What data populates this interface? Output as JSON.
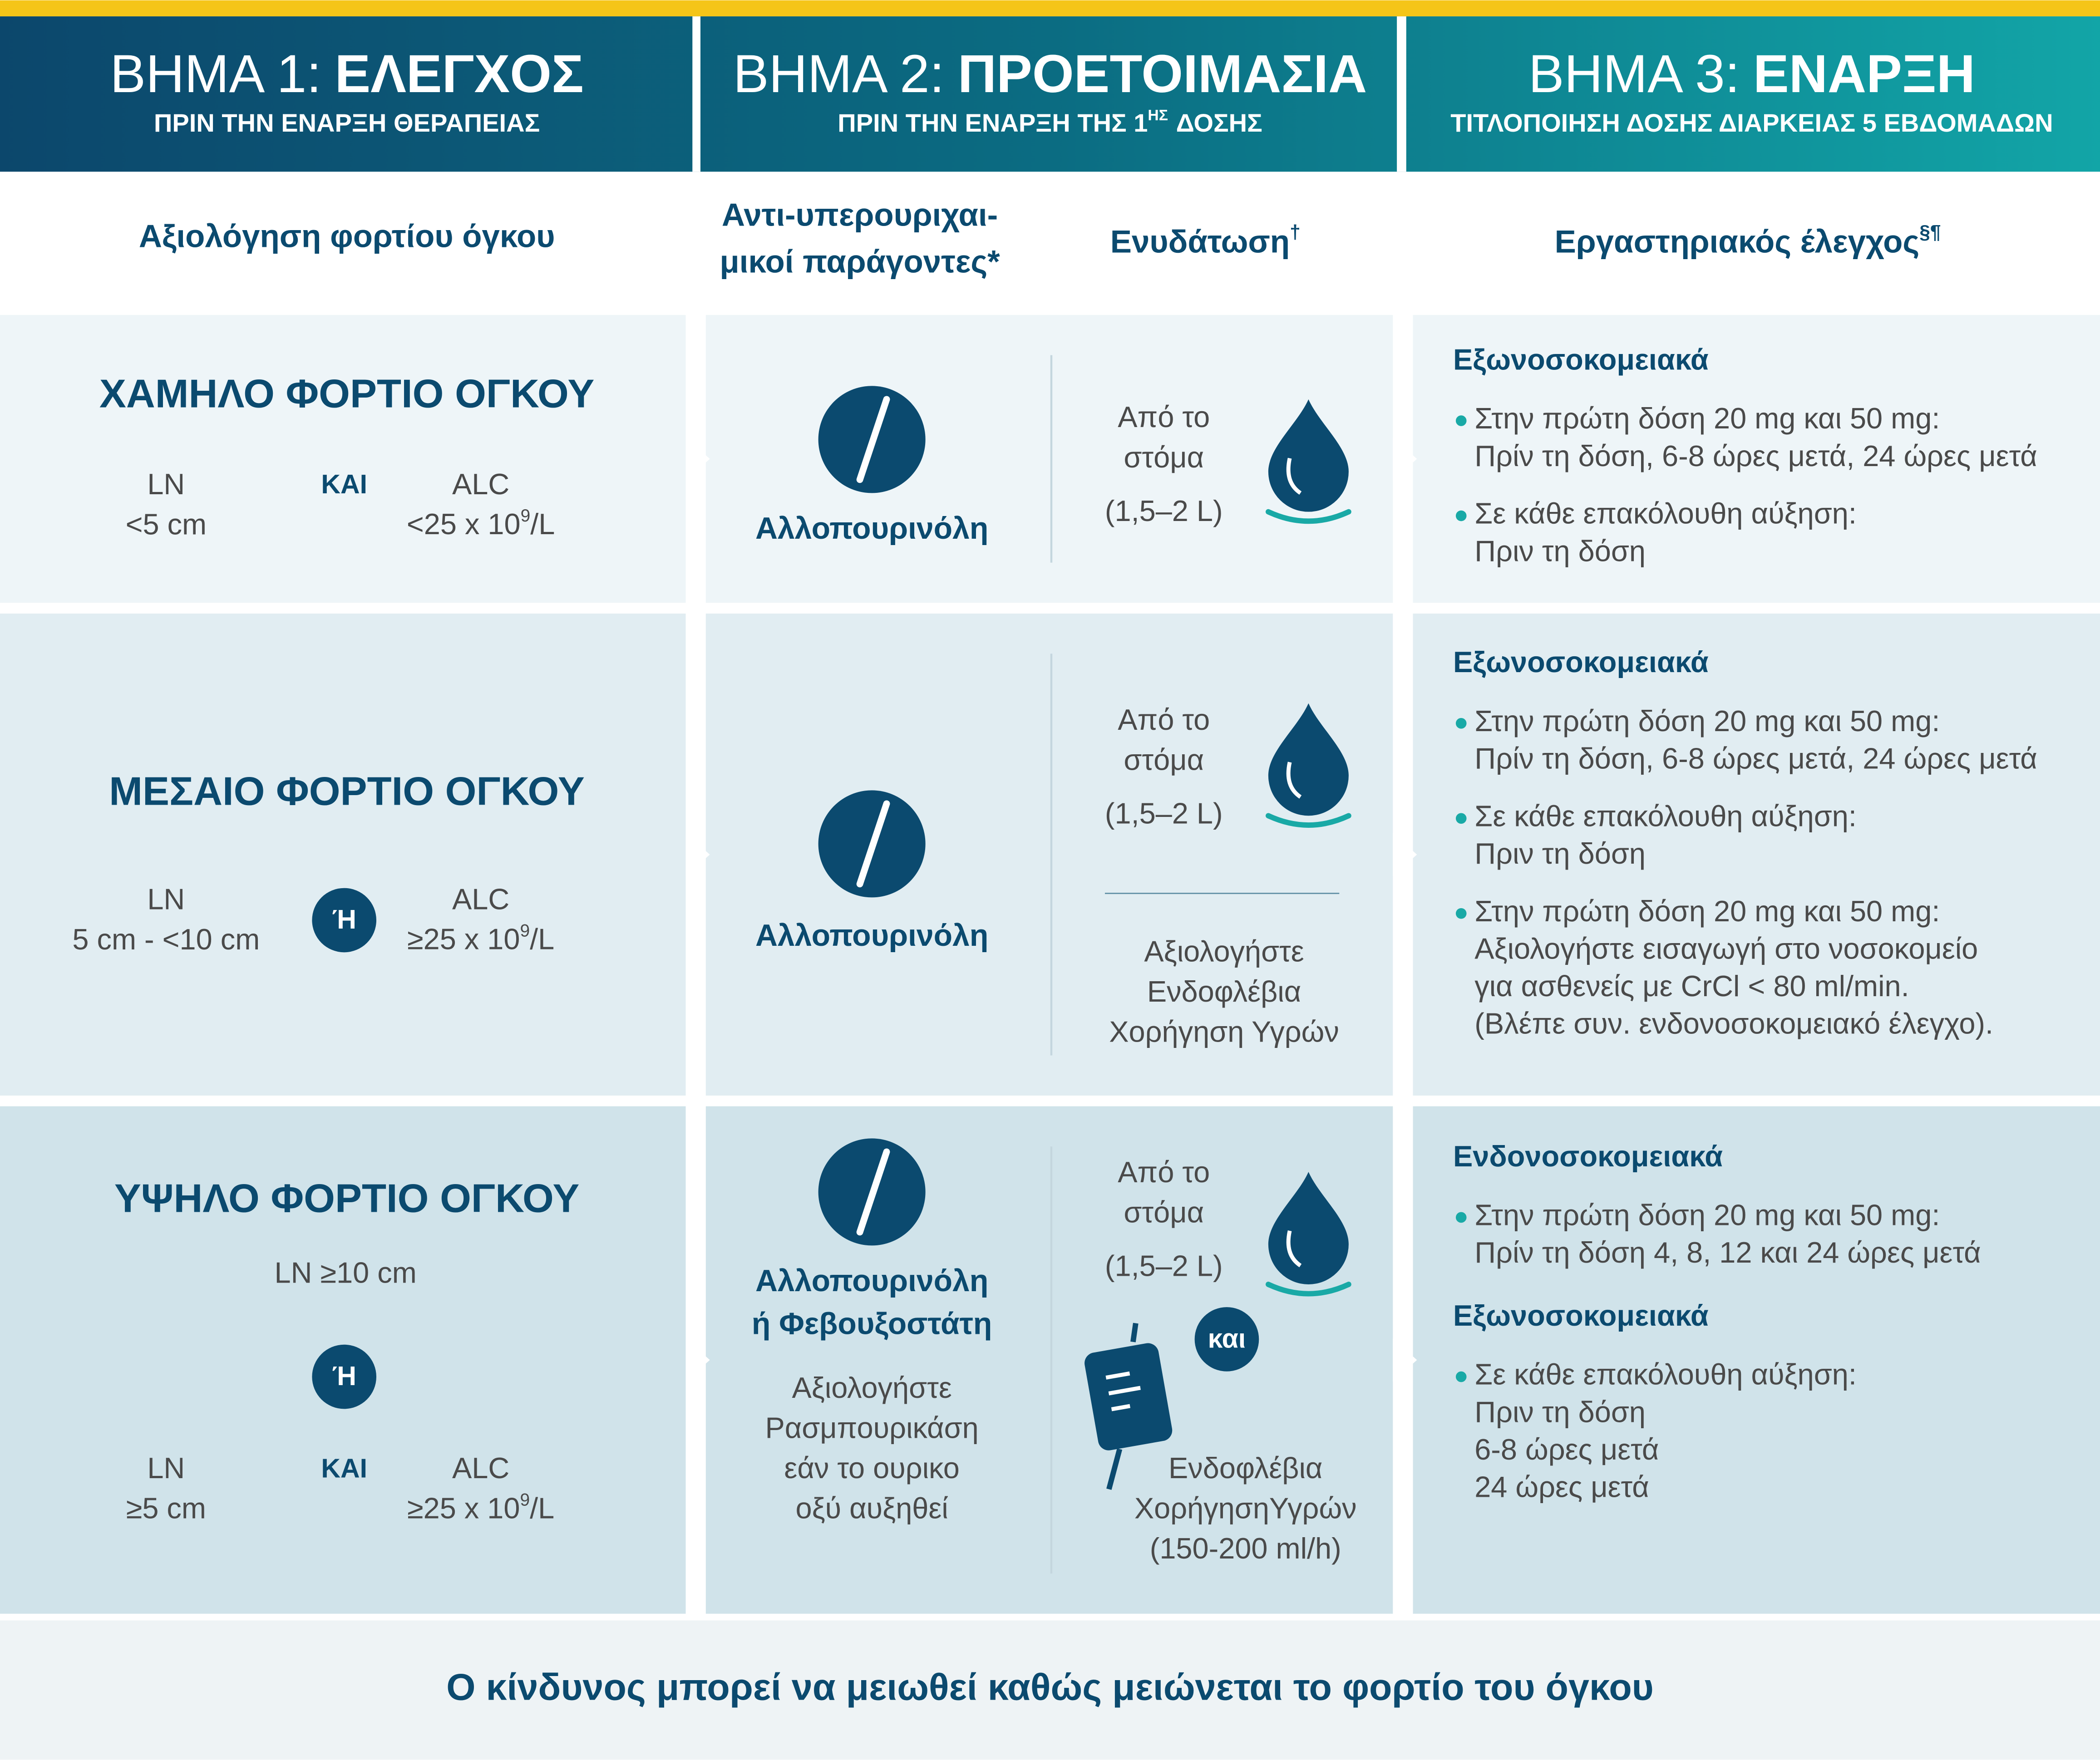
{
  "header": {
    "steps": [
      {
        "step": "ΒΗΜΑ 1:",
        "title": "ΕΛΕΓΧΟΣ",
        "subtitle": [
          "ΠΡΙΝ ΤΗΝ ΕΝΑΡΞΗ ΘΕΡΑΠΕΙΑΣ"
        ]
      },
      {
        "step": "ΒΗΜΑ 2:",
        "title": "ΠΡΟΕΤΟΙΜΑΣΙΑ",
        "subtitle": [
          "ΠΡΙΝ ΤΗΝ ΕΝΑΡΞΗ ΤΗΣ 1",
          "ΗΣ",
          "ΔΟΣΗΣ"
        ]
      },
      {
        "step": "ΒΗΜΑ 3:",
        "title": "ΕΝΑΡΞΗ",
        "subtitle": [
          "ΤΙΤΛΟΠΟΙΗΣΗ ΔΟΣΗΣ ΔΙΑΡΚΕΙΑΣ 5 ΕΒΔΟΜΑΔΩΝ"
        ]
      }
    ]
  },
  "columns": {
    "assessment": "Αξιολόγηση φορτίου όγκου",
    "agents": [
      "Αντι-υπερουριχαι-",
      "μικοί παράγοντες*"
    ],
    "hydration": "Ενυδάτωση",
    "hydration_mark": "†",
    "lab": "Εργαστηριακός έλεγχος",
    "lab_mark": "§¶"
  },
  "rows": [
    {
      "title": "ΧΑΜΗΛΟ ΦΟΡΤΙΟ ΟΓΚΟΥ",
      "criteria": {
        "left": [
          "LN",
          "<5 cm"
        ],
        "join": "ΚΑΙ",
        "right": {
          "label": "ALC",
          "value": "<25 x 10",
          "exp": "9",
          "unit": "/L"
        }
      },
      "agent": {
        "names": [
          "Αλλοπουρινόλη"
        ]
      },
      "hydration": {
        "oral": [
          "Από το",
          "στόμα",
          "(1,5–2 L)"
        ]
      },
      "lab": [
        {
          "heading": "Εξωνοσοκομειακά",
          "bullets": [
            [
              "Στην πρώτη δόση 20 mg και 50 mg:",
              "Πρίν τη δόση, 6-8 ώρες μετά, 24 ώρες μετά"
            ],
            [
              "Σε κάθε επακόλουθη αύξηση:",
              "Πριν τη δόση"
            ]
          ]
        }
      ]
    },
    {
      "title": "ΜΕΣΑΙΟ ΦΟΡΤΙΟ ΟΓΚΟΥ",
      "criteria": {
        "left": [
          "LN",
          "5 cm - <10 cm"
        ],
        "join": "Ή",
        "right": {
          "label": "ALC",
          "value": "≥25 x 10",
          "exp": "9",
          "unit": "/L"
        }
      },
      "agent": {
        "names": [
          "Αλλοπουρινόλη"
        ]
      },
      "hydration": {
        "oral": [
          "Από το",
          "στόμα",
          "(1,5–2 L)"
        ],
        "iv": [
          "Αξιολογήστε",
          "Ενδοφλέβια",
          "Χορήγηση Υγρών"
        ]
      },
      "lab": [
        {
          "heading": "Εξωνοσοκομειακά",
          "bullets": [
            [
              "Στην πρώτη δόση 20 mg και 50 mg:",
              "Πρίν τη δόση, 6-8 ώρες μετά, 24 ώρες μετά"
            ],
            [
              "Σε κάθε επακόλουθη αύξηση:",
              "Πριν τη δόση"
            ],
            [
              "Στην πρώτη δόση 20 mg και 50 mg:",
              "Αξιολογήστε εισαγωγή στο νοσοκομείο",
              "για ασθενείς με CrCl < 80 ml/min.",
              "(Βλέπε  συν. ενδονοσοκομειακό έλεγχο)."
            ]
          ]
        }
      ]
    },
    {
      "title": "ΥΨΗΛΟ ΦΟΡΤΙΟ ΟΓΚΟΥ",
      "criteria": {
        "top": "LN ≥10 cm",
        "top_join": "Ή",
        "left": [
          "LN",
          "≥5 cm"
        ],
        "join": "ΚΑΙ",
        "right": {
          "label": "ALC",
          "value": "≥25 x 10",
          "exp": "9",
          "unit": "/L"
        }
      },
      "agent": {
        "names": [
          "Αλλοπουρινόλη",
          "ή Φεβουξοστάτη"
        ],
        "note": [
          "Αξιολογήστε",
          "Ρασμπουρικάση",
          "εάν το ουρικο",
          "οξύ αυξηθεί"
        ]
      },
      "hydration": {
        "oral": [
          "Από το",
          "στόμα",
          "(1,5–2 L)"
        ],
        "join": "και",
        "iv": [
          "Ενδοφλέβια",
          "ΧορήγησηΥγρών",
          "(150-200 ml/h)"
        ]
      },
      "lab": [
        {
          "heading": "Ενδονοσοκομειακά",
          "bullets": [
            [
              "Στην πρώτη δόση 20 mg και 50 mg:",
              "Πρίν τη δόση 4, 8, 12 και 24 ώρες μετά"
            ]
          ]
        },
        {
          "heading": "Εξωνοσοκομειακά",
          "bullets": [
            [
              "Σε κάθε επακόλουθη αύξηση:",
              "Πριν τη δόση",
              "6-8 ώρες μετά",
              "24 ώρες μετά"
            ]
          ]
        }
      ]
    }
  ],
  "footer": "Ο κίνδυνος μπορεί να μειωθεί καθώς μειώνεται το φορτίο του όγκου"
}
